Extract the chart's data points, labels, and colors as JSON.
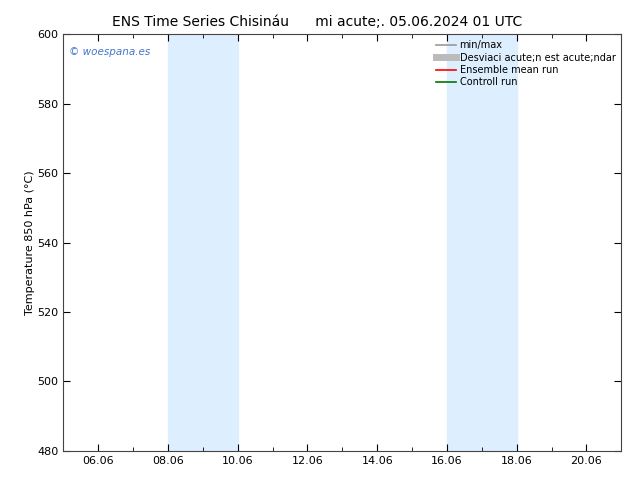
{
  "title_left": "ENS Time Series Chisináu",
  "title_right": "mi acute;. 05.06.2024 01 UTC",
  "ylabel": "Temperature 850 hPa (°C)",
  "ylim": [
    480,
    600
  ],
  "yticks": [
    480,
    500,
    520,
    540,
    560,
    580,
    600
  ],
  "xlim": [
    0,
    16
  ],
  "xtick_labels": [
    "06.06",
    "08.06",
    "10.06",
    "12.06",
    "14.06",
    "16.06",
    "18.06",
    "20.06"
  ],
  "xtick_positions": [
    1,
    3,
    5,
    7,
    9,
    11,
    13,
    15
  ],
  "minor_xtick_positions": [
    0,
    2,
    4,
    6,
    8,
    10,
    12,
    14,
    16
  ],
  "shade_regions": [
    {
      "x_start": 3,
      "x_end": 5
    },
    {
      "x_start": 11,
      "x_end": 13
    }
  ],
  "shade_color": "#ddeeff",
  "bg_color": "#ffffff",
  "watermark": "© woespana.es",
  "watermark_color": "#4477cc",
  "legend_entries": [
    {
      "label": "min/max",
      "color": "#999999",
      "lw": 1.2
    },
    {
      "label": "Desviaci acute;n est acute;ndar",
      "color": "#bbbbbb",
      "lw": 5
    },
    {
      "label": "Ensemble mean run",
      "color": "#ff0000",
      "lw": 1.2
    },
    {
      "label": "Controll run",
      "color": "#007700",
      "lw": 1.2
    }
  ],
  "title_fontsize": 10,
  "tick_fontsize": 8,
  "ylabel_fontsize": 8,
  "legend_fontsize": 7
}
